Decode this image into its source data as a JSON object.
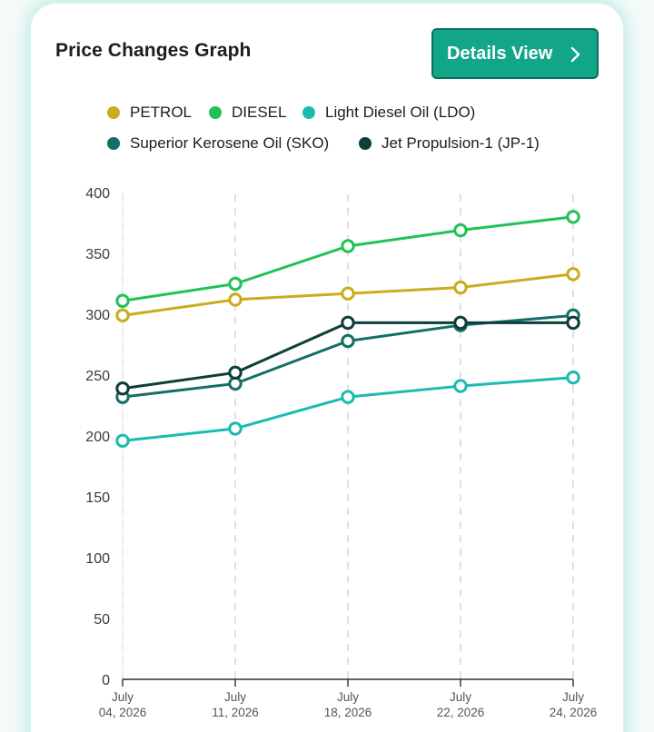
{
  "card": {
    "title": "Price Changes Graph",
    "details_button": {
      "label": "Details View"
    }
  },
  "chart_data": {
    "type": "line",
    "title": "",
    "xlabel": "",
    "ylabel": "",
    "ylim": [
      0,
      400
    ],
    "yticks": [
      "0",
      "50",
      "100",
      "150",
      "200",
      "250",
      "300",
      "350",
      "400"
    ],
    "categories": [
      {
        "line1": "July",
        "line2": "04, 2026"
      },
      {
        "line1": "July",
        "line2": "11, 2026"
      },
      {
        "line1": "July",
        "line2": "18, 2026"
      },
      {
        "line1": "July",
        "line2": "22, 2026"
      },
      {
        "line1": "July",
        "line2": "24, 2026"
      }
    ],
    "grid": {
      "vertical_dashed": true,
      "horizontal": false
    },
    "legend_position": "top",
    "series": [
      {
        "name": "PETROL",
        "color": "#c9ac1d",
        "values": [
          299,
          312,
          317,
          322,
          333
        ]
      },
      {
        "name": "DIESEL",
        "color": "#1fc255",
        "values": [
          311,
          325,
          356,
          369,
          380
        ]
      },
      {
        "name": "Light Diesel Oil (LDO)",
        "color": "#1abcb0",
        "values": [
          196,
          206,
          232,
          241,
          248
        ]
      },
      {
        "name": "Superior Kerosene Oil (SKO)",
        "color": "#136f66",
        "values": [
          232,
          243,
          278,
          291,
          299
        ]
      },
      {
        "name": "Jet Propulsion-1 (JP-1)",
        "color": "#0f3d3a",
        "values": [
          239,
          252,
          293,
          293,
          293
        ]
      }
    ]
  }
}
